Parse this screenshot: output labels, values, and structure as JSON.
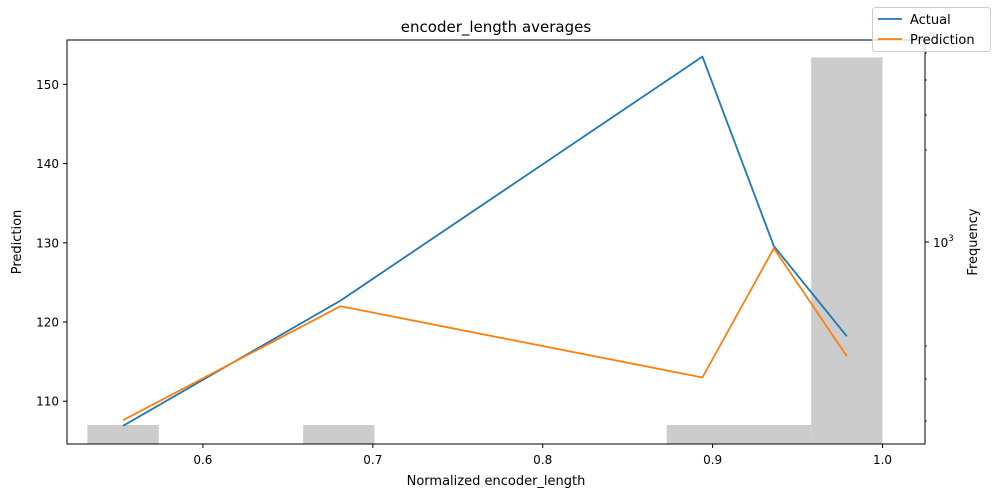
{
  "chart_data": {
    "type": "line",
    "title": "encoder_length averages",
    "xlabel": "Normalized encoder_length",
    "ylabel": "Prediction",
    "y2label": "Frequency",
    "xlim": [
      0.52,
      1.025
    ],
    "ylim": [
      104.6,
      155.6
    ],
    "x_ticks": [
      0.6,
      0.7,
      0.8,
      0.9,
      1.0
    ],
    "x_tick_labels": [
      "0.6",
      "0.7",
      "0.8",
      "0.9",
      "1.0"
    ],
    "y_ticks": [
      110,
      120,
      130,
      140,
      150
    ],
    "y_tick_labels": [
      "110",
      "120",
      "130",
      "140",
      "150"
    ],
    "y2_scale": "log",
    "y2_tick_label": "10",
    "y2_tick_exp": "3",
    "legend_placement": "upper right",
    "series": [
      {
        "name": "Actual",
        "color": "#1f77b4",
        "x": [
          0.553,
          0.681,
          0.894,
          0.936,
          0.979
        ],
        "y": [
          106.9,
          122.7,
          153.5,
          129.6,
          118.2
        ]
      },
      {
        "name": "Prediction",
        "color": "#ff7f0e",
        "x": [
          0.553,
          0.681,
          0.894,
          0.936,
          0.979
        ],
        "y": [
          107.6,
          122.0,
          113.0,
          129.3,
          115.7
        ]
      }
    ],
    "histogram": {
      "color": "#cccccc",
      "bins": [
        {
          "x0": 0.532,
          "x1": 0.574,
          "y_top": 107.0
        },
        {
          "x0": 0.659,
          "x1": 0.701,
          "y_top": 107.0
        },
        {
          "x0": 0.873,
          "x1": 0.958,
          "y_top": 107.0
        },
        {
          "x0": 0.958,
          "x1": 1.0,
          "y_top": 153.4
        }
      ]
    }
  }
}
